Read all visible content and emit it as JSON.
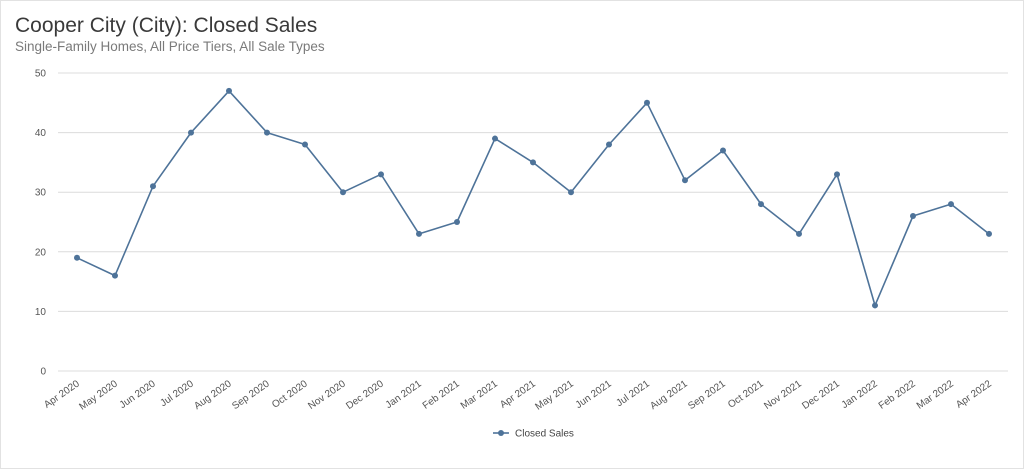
{
  "title": "Cooper City (City): Closed Sales",
  "subtitle": "Single-Family Homes, All Price Tiers, All Sale Types",
  "colors": {
    "series": "#4e7399",
    "grid": "#dcdcdc",
    "text": "#555555"
  },
  "chart_data": {
    "type": "line",
    "title": "Cooper City (City): Closed Sales",
    "subtitle": "Single-Family Homes, All Price Tiers, All Sale Types",
    "categories": [
      "Apr 2020",
      "May 2020",
      "Jun 2020",
      "Jul 2020",
      "Aug 2020",
      "Sep 2020",
      "Oct 2020",
      "Nov 2020",
      "Dec 2020",
      "Jan 2021",
      "Feb 2021",
      "Mar 2021",
      "Apr 2021",
      "May 2021",
      "Jun 2021",
      "Jul 2021",
      "Aug 2021",
      "Sep 2021",
      "Oct 2021",
      "Nov 2021",
      "Dec 2021",
      "Jan 2022",
      "Feb 2022",
      "Mar 2022",
      "Apr 2022"
    ],
    "series": [
      {
        "name": "Closed Sales",
        "values": [
          19,
          16,
          31,
          40,
          47,
          40,
          38,
          30,
          33,
          23,
          25,
          39,
          35,
          30,
          38,
          45,
          32,
          37,
          28,
          23,
          33,
          11,
          26,
          28,
          23
        ]
      }
    ],
    "ylim": [
      0,
      50
    ],
    "yticks": [
      0,
      10,
      20,
      30,
      40,
      50
    ],
    "grid": true,
    "legend": "bottom-center"
  }
}
